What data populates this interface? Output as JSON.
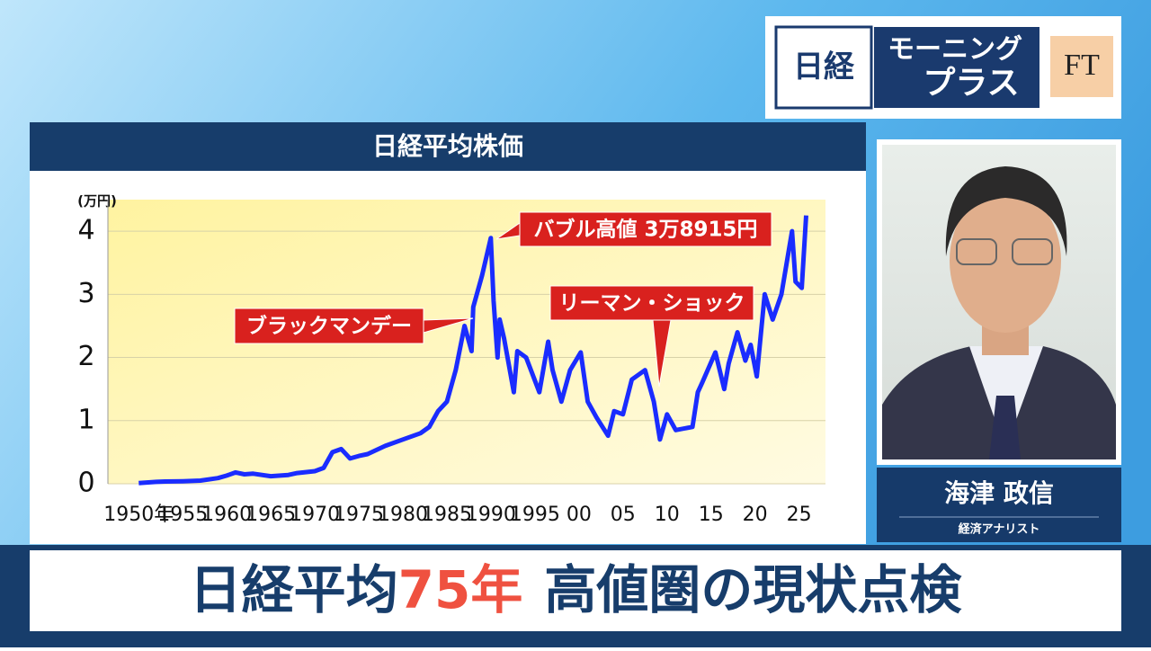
{
  "logo": {
    "left": "日経",
    "top": "モーニング",
    "bottom": "プラス",
    "partner": "FT"
  },
  "chart_data": {
    "type": "line",
    "title": "日経平均株価",
    "ylabel": "(万円)",
    "x": [
      1950,
      1952,
      1953,
      1955,
      1957,
      1959,
      1960,
      1961,
      1962,
      1963,
      1965,
      1967,
      1968,
      1970,
      1971,
      1972,
      1973,
      1974,
      1975,
      1976,
      1978,
      1980,
      1982,
      1983,
      1984,
      1985,
      1986,
      1987,
      1987.8,
      1988,
      1989,
      1989.99,
      1990.3,
      1990.75,
      1991,
      1991.5,
      1992.6,
      1993,
      1994,
      1995.5,
      1996.5,
      1997,
      1998,
      1999,
      2000.2,
      2001,
      2002,
      2003.3,
      2004,
      2005,
      2006,
      2007.5,
      2008.5,
      2009.2,
      2010,
      2011,
      2012.9,
      2013.5,
      2014,
      2015.5,
      2016.5,
      2017,
      2018,
      2018.9,
      2019.5,
      2020.2,
      2021.1,
      2022,
      2023,
      2024.2,
      2024.6,
      2025.3,
      2025.8
    ],
    "values": [
      0.01,
      0.03,
      0.035,
      0.04,
      0.05,
      0.09,
      0.13,
      0.18,
      0.15,
      0.16,
      0.12,
      0.14,
      0.17,
      0.2,
      0.25,
      0.5,
      0.55,
      0.4,
      0.44,
      0.47,
      0.6,
      0.7,
      0.8,
      0.9,
      1.15,
      1.3,
      1.8,
      2.5,
      2.1,
      2.8,
      3.3,
      3.8915,
      2.9,
      2.0,
      2.6,
      2.3,
      1.45,
      2.1,
      2.0,
      1.45,
      2.25,
      1.8,
      1.3,
      1.8,
      2.08,
      1.3,
      1.05,
      0.76,
      1.15,
      1.1,
      1.65,
      1.8,
      1.3,
      0.7,
      1.1,
      0.85,
      0.9,
      1.45,
      1.6,
      2.08,
      1.5,
      1.9,
      2.4,
      1.95,
      2.2,
      1.7,
      3.0,
      2.6,
      3.0,
      4.0,
      3.2,
      3.1,
      4.25
    ],
    "color": "#1a2cff",
    "xlim": [
      1946.5,
      2028
    ],
    "ylim": [
      0,
      4.5
    ],
    "xticks": [
      {
        "value": 1950,
        "label": "1950年"
      },
      1955,
      1960,
      1965,
      1970,
      1975,
      1980,
      1985,
      1990,
      1995,
      {
        "value": 2000,
        "label": "00"
      },
      {
        "value": 2005,
        "label": "05"
      },
      {
        "value": 2010,
        "label": "10"
      },
      {
        "value": 2015,
        "label": "15"
      },
      {
        "value": 2020,
        "label": "20"
      },
      {
        "value": 2025,
        "label": "25"
      }
    ],
    "yticks": [
      0,
      1,
      2,
      3,
      4
    ],
    "grid": true,
    "annotations": [
      "バブル高値 3万8915円",
      "ブラックマンデー",
      "リーマン・ショック"
    ]
  },
  "speaker": {
    "name": "海津 政信",
    "role": "経済アナリスト"
  },
  "caption": {
    "parts": [
      "日経平均",
      "75年",
      "高値圏の現状点検"
    ]
  }
}
